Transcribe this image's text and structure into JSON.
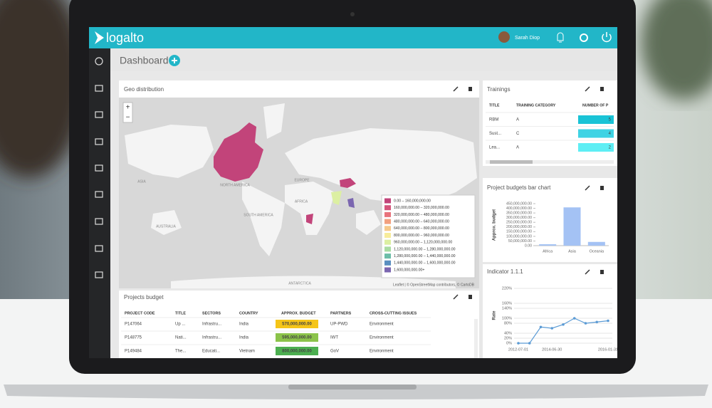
{
  "header": {
    "logo": "logalto",
    "user": "Sarah Diop"
  },
  "page_title": "Dashboard",
  "geo": {
    "title": "Geo distribution",
    "zoom_in": "+",
    "zoom_out": "−",
    "labels": [
      "NORTH AMERICA",
      "ASIA",
      "EUROPE",
      "AFRICA",
      "SOUTH AMERICA",
      "AUSTRALIA",
      "ANTARCTICA"
    ],
    "legend": [
      {
        "label": "0.00 – 160,000,000.00",
        "color": "#c2447a"
      },
      {
        "label": "160,000,000.00 – 320,000,000.00",
        "color": "#d5557c"
      },
      {
        "label": "320,000,000.00 – 480,000,000.00",
        "color": "#e8727c"
      },
      {
        "label": "480,000,000.00 – 640,000,000.00",
        "color": "#f2a07f"
      },
      {
        "label": "640,000,000.00 – 800,000,000.00",
        "color": "#f6c98b"
      },
      {
        "label": "800,000,000.00 – 960,000,000.00",
        "color": "#f7ec9b"
      },
      {
        "label": "960,000,000.00 – 1,120,000,000.00",
        "color": "#dcefa2"
      },
      {
        "label": "1,120,000,000.00 – 1,280,000,000.00",
        "color": "#a9dca3"
      },
      {
        "label": "1,280,000,000.00 – 1,440,000,000.00",
        "color": "#6cbda8"
      },
      {
        "label": "1,440,000,000.00 – 1,600,000,000.00",
        "color": "#5a8fc0"
      },
      {
        "label": "1,600,000,000.00+",
        "color": "#7b66b0"
      }
    ],
    "attribution": "Leaflet | © OpenStreetMap contributors, © CartoDB"
  },
  "trainings": {
    "title": "Trainings",
    "columns": [
      "TITLE",
      "TRAINING CATEGORY",
      "NUMBER OF P"
    ],
    "rows": [
      [
        "RBM",
        "A",
        5
      ],
      [
        "Sust...",
        "C",
        4
      ],
      [
        "Lea...",
        "A",
        2
      ]
    ]
  },
  "projects": {
    "title": "Projects budget",
    "columns": [
      "PROJECT CODE",
      "TITLE",
      "SECTORS",
      "COUNTRY",
      "APPROX. BUDGET",
      "PARTNERS",
      "CROSS-CUTTING ISSUES"
    ],
    "rows": [
      [
        "P147064",
        "Up ...",
        "Infrastru...",
        "India",
        "570,000,000.00",
        "UP-PWD",
        "Environment"
      ],
      [
        "P148775",
        "Nati...",
        "Infrastru...",
        "India",
        "595,000,000.00",
        "IWT",
        "Environment"
      ],
      [
        "P149484",
        "The...",
        "Educati...",
        "Vietnam",
        "800,000,000.00",
        "GoV",
        "Environment"
      ]
    ]
  },
  "chart_data": [
    {
      "type": "bar",
      "title": "Project budgets bar chart",
      "y_label": "Approx. budget",
      "categories": [
        "Africa",
        "Asia",
        "Oceania"
      ],
      "values": [
        15000000,
        410000000,
        40000000
      ],
      "color": "#a4c2f4",
      "ylim": [
        0,
        450000000
      ],
      "yticks": [
        {
          "value": 0,
          "label": "0.00"
        },
        {
          "value": 50000000,
          "label": "50,000,000.00"
        },
        {
          "value": 100000000,
          "label": "100,000,000.00"
        },
        {
          "value": 150000000,
          "label": "150,000,000.00"
        },
        {
          "value": 200000000,
          "label": "200,000,000.00"
        },
        {
          "value": 250000000,
          "label": "250,000,000.00"
        },
        {
          "value": 300000000,
          "label": "300,000,000.00"
        },
        {
          "value": 350000000,
          "label": "350,000,000.00"
        },
        {
          "value": 400000000,
          "label": "400,000,000.00"
        },
        {
          "value": 450000000,
          "label": "450,000,000.00"
        }
      ]
    },
    {
      "type": "line",
      "title": "Indicator 1.1.1",
      "y_label": "Rate",
      "categories": [
        "2012-07-01",
        null,
        null,
        "2014-06-30",
        null,
        null,
        null,
        null,
        "2016-01-31"
      ],
      "values": [
        0,
        0,
        65,
        60,
        75,
        100,
        80,
        85,
        90
      ],
      "color": "#5b9bd5",
      "grid": true,
      "ylim": [
        0,
        220
      ],
      "yticks": [
        {
          "value": 0,
          "label": "0%"
        },
        {
          "value": 20,
          "label": "20%"
        },
        {
          "value": 40,
          "label": "40%"
        },
        {
          "value": 80,
          "label": "80%"
        },
        {
          "value": 100,
          "label": "100%"
        },
        {
          "value": 140,
          "label": "140%"
        },
        {
          "value": 160,
          "label": "160%"
        },
        {
          "value": 220,
          "label": "220%"
        }
      ]
    }
  ]
}
